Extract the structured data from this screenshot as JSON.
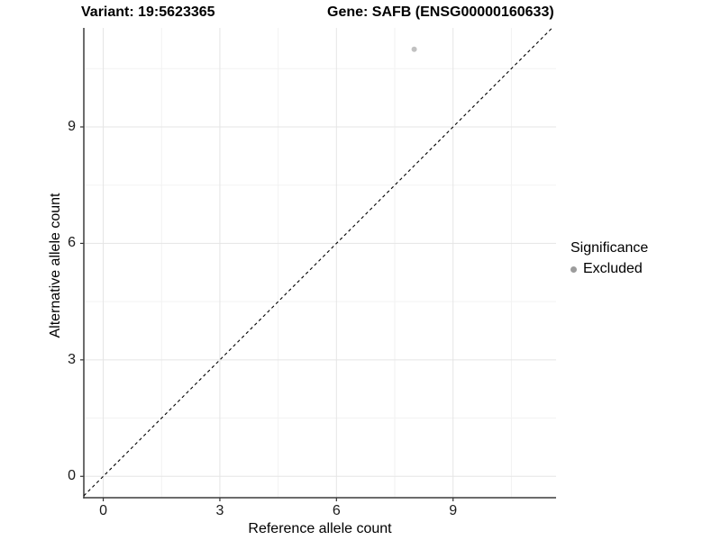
{
  "chart_data": {
    "type": "scatter",
    "titles": {
      "left": "Variant: 19:5623365",
      "right": "Gene: SAFB (ENSG00000160633)"
    },
    "xlabel": "Reference allele count",
    "ylabel": "Alternative allele count",
    "xlim": [
      -0.5,
      11.65
    ],
    "ylim": [
      -0.55,
      11.55
    ],
    "x_ticks": [
      0,
      3,
      6,
      9
    ],
    "y_ticks": [
      0,
      3,
      6,
      9
    ],
    "x_minor_ticks": [
      1.5,
      4.5,
      7.5,
      10.5
    ],
    "y_minor_ticks": [
      1.5,
      4.5,
      7.5,
      10.5
    ],
    "grid": true,
    "reference_line": {
      "slope": 1,
      "intercept": 0,
      "linetype": "dashed",
      "color": "#000000"
    },
    "series": [
      {
        "name": "Excluded",
        "color": "#c1c1c1",
        "points": [
          {
            "x": 8,
            "y": 11
          }
        ]
      }
    ],
    "legend": {
      "title": "Significance",
      "position": "right",
      "items": [
        {
          "label": "Excluded",
          "color": "#9c9c9c"
        }
      ]
    }
  },
  "colors": {
    "grid_major": "#e5e5e5",
    "grid_minor": "#f2f2f2",
    "axis_line": "#3c3c3c",
    "tick_mark": "#333333",
    "background": "#ffffff"
  }
}
